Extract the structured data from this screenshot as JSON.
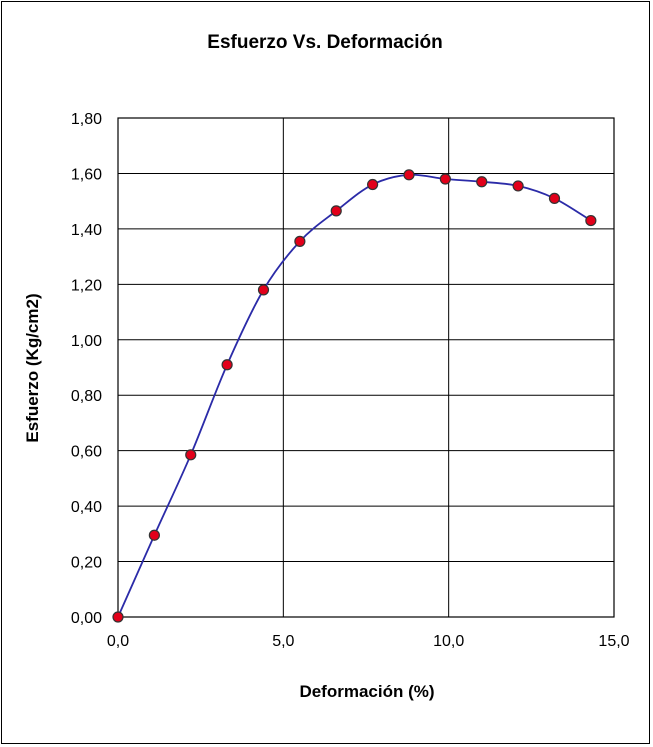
{
  "chart_data": {
    "type": "line",
    "title": "Esfuerzo Vs. Deformación",
    "xlabel": "Deformación (%)",
    "ylabel": "Esfuerzo (Kg/cm2)",
    "xlim": [
      0,
      15
    ],
    "ylim": [
      0,
      1.8
    ],
    "xticks": [
      0,
      5,
      10,
      15
    ],
    "yticks": [
      0,
      0.2,
      0.4,
      0.6,
      0.8,
      1.0,
      1.2,
      1.4,
      1.6,
      1.8
    ],
    "xtick_labels": [
      "0,0",
      "5,0",
      "10,0",
      "15,0"
    ],
    "ytick_labels": [
      "0,00",
      "0,20",
      "0,40",
      "0,60",
      "0,80",
      "1,00",
      "1,20",
      "1,40",
      "1,60",
      "1,80"
    ],
    "grid": true,
    "legend": "none",
    "series": [
      {
        "x": [
          0,
          1.1,
          2.2,
          3.3,
          4.4,
          5.5,
          6.6,
          7.7,
          8.8,
          9.9,
          11.0,
          12.1,
          13.2,
          14.3
        ],
        "y": [
          0,
          0.295,
          0.585,
          0.91,
          1.18,
          1.355,
          1.465,
          1.56,
          1.595,
          1.58,
          1.57,
          1.555,
          1.51,
          1.43
        ],
        "line_color": "#2b2ba8",
        "marker_color": "#e2001a"
      }
    ]
  }
}
